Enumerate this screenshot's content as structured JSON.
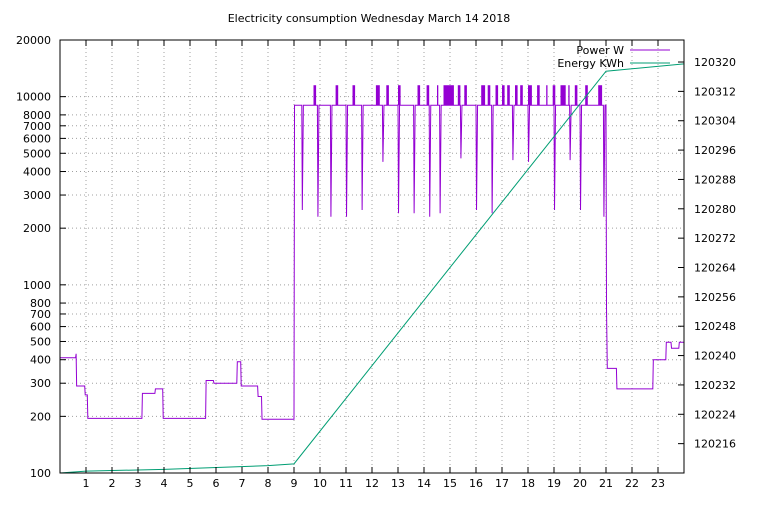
{
  "chart_data": {
    "type": "line",
    "title": "Electricity consumption Wednesday March 14 2018",
    "x": {
      "range": [
        0,
        24
      ],
      "ticks": [
        1,
        2,
        3,
        4,
        5,
        6,
        7,
        8,
        9,
        10,
        11,
        12,
        13,
        14,
        15,
        16,
        17,
        18,
        19,
        20,
        21,
        22,
        23
      ],
      "tick_labels": [
        "1",
        "2",
        "3",
        "4",
        "5",
        "6",
        "7",
        "8",
        "9",
        "10",
        "11",
        "12",
        "13",
        "14",
        "15",
        "16",
        "17",
        "18",
        "19",
        "20",
        "21",
        "22",
        "23"
      ]
    },
    "y_left": {
      "scale": "log",
      "range": [
        100,
        20000
      ],
      "ticks": [
        100,
        200,
        300,
        400,
        500,
        600,
        700,
        800,
        1000,
        2000,
        3000,
        4000,
        5000,
        6000,
        7000,
        8000,
        10000,
        20000
      ],
      "tick_labels": [
        "100",
        "200",
        "300",
        "400",
        "500",
        "600",
        "700",
        "800",
        "1000",
        "2000",
        "3000",
        "4000",
        "5000",
        "6000",
        "7000",
        "8000",
        "10000",
        "20000"
      ]
    },
    "y_right": {
      "scale": "linear",
      "range": [
        120208,
        120326
      ],
      "ticks": [
        120216,
        120224,
        120232,
        120240,
        120248,
        120256,
        120264,
        120272,
        120280,
        120288,
        120296,
        120304,
        120312,
        120320
      ],
      "tick_labels": [
        "120216",
        "120224",
        "120232",
        "120240",
        "120248",
        "120256",
        "120264",
        "120272",
        "120280",
        "120288",
        "120296",
        "120304",
        "120312",
        "120320"
      ]
    },
    "grid": true,
    "legend_position": "top-right",
    "series": [
      {
        "name": "Power W",
        "color": "#9400d3",
        "axis": "left",
        "points": [
          [
            0,
            410
          ],
          [
            0.6,
            410
          ],
          [
            0.62,
            430
          ],
          [
            0.64,
            290
          ],
          [
            0.95,
            290
          ],
          [
            0.97,
            260
          ],
          [
            1.05,
            260
          ],
          [
            1.07,
            195
          ],
          [
            3.15,
            195
          ],
          [
            3.17,
            265
          ],
          [
            3.65,
            265
          ],
          [
            3.67,
            280
          ],
          [
            3.95,
            280
          ],
          [
            3.97,
            195
          ],
          [
            5.6,
            195
          ],
          [
            5.62,
            310
          ],
          [
            5.9,
            310
          ],
          [
            5.92,
            300
          ],
          [
            6.8,
            300
          ],
          [
            6.82,
            390
          ],
          [
            6.95,
            390
          ],
          [
            6.97,
            290
          ],
          [
            7.6,
            290
          ],
          [
            7.62,
            255
          ],
          [
            7.75,
            255
          ],
          [
            7.77,
            193
          ],
          [
            9.0,
            193
          ],
          [
            9.02,
            9000
          ],
          [
            9.3,
            9000
          ],
          [
            9.32,
            2500
          ],
          [
            9.36,
            9000
          ],
          [
            9.9,
            9000
          ],
          [
            9.92,
            2300
          ],
          [
            9.96,
            9000
          ],
          [
            10.4,
            9000
          ],
          [
            10.42,
            2300
          ],
          [
            10.46,
            9000
          ],
          [
            11.0,
            9000
          ],
          [
            11.02,
            2300
          ],
          [
            11.06,
            9000
          ],
          [
            11.6,
            9000
          ],
          [
            11.62,
            2500
          ],
          [
            11.66,
            9000
          ],
          [
            12.4,
            9000
          ],
          [
            12.42,
            4500
          ],
          [
            12.46,
            9000
          ],
          [
            13.0,
            9000
          ],
          [
            13.02,
            2400
          ],
          [
            13.06,
            9000
          ],
          [
            13.6,
            9000
          ],
          [
            13.62,
            2400
          ],
          [
            13.66,
            9000
          ],
          [
            14.2,
            9000
          ],
          [
            14.22,
            2300
          ],
          [
            14.26,
            9000
          ],
          [
            14.6,
            9000
          ],
          [
            14.62,
            2400
          ],
          [
            14.66,
            9000
          ],
          [
            15.4,
            9000
          ],
          [
            15.42,
            4700
          ],
          [
            15.46,
            9000
          ],
          [
            16.0,
            9000
          ],
          [
            16.02,
            2500
          ],
          [
            16.06,
            9000
          ],
          [
            16.6,
            9000
          ],
          [
            16.62,
            2400
          ],
          [
            16.66,
            9000
          ],
          [
            17.4,
            9000
          ],
          [
            17.42,
            4600
          ],
          [
            17.46,
            9000
          ],
          [
            18.0,
            9000
          ],
          [
            18.02,
            4500
          ],
          [
            18.06,
            9000
          ],
          [
            19.0,
            9000
          ],
          [
            19.02,
            2500
          ],
          [
            19.06,
            9000
          ],
          [
            19.6,
            9000
          ],
          [
            19.62,
            4600
          ],
          [
            19.66,
            9000
          ],
          [
            20.0,
            9000
          ],
          [
            20.02,
            2500
          ],
          [
            20.06,
            9000
          ],
          [
            20.9,
            9000
          ],
          [
            20.92,
            2300
          ],
          [
            20.96,
            9000
          ],
          [
            21.0,
            9000
          ],
          [
            21.02,
            740
          ],
          [
            21.05,
            360
          ],
          [
            21.4,
            360
          ],
          [
            21.42,
            280
          ],
          [
            22.8,
            280
          ],
          [
            22.82,
            400
          ],
          [
            23.3,
            400
          ],
          [
            23.32,
            495
          ],
          [
            23.5,
            495
          ],
          [
            23.52,
            460
          ],
          [
            23.8,
            460
          ],
          [
            23.82,
            495
          ],
          [
            24,
            495
          ]
        ],
        "bursts": [
          [
            9.75,
            9.85
          ],
          [
            10.6,
            10.7
          ],
          [
            11.25,
            11.35
          ],
          [
            12.15,
            12.3
          ],
          [
            12.55,
            12.65
          ],
          [
            13.0,
            13.1
          ],
          [
            13.75,
            13.85
          ],
          [
            14.1,
            14.2
          ],
          [
            14.5,
            14.55
          ],
          [
            14.75,
            15.15
          ],
          [
            15.3,
            15.4
          ],
          [
            15.55,
            15.65
          ],
          [
            16.2,
            16.35
          ],
          [
            16.45,
            16.55
          ],
          [
            16.75,
            16.85
          ],
          [
            17.0,
            17.1
          ],
          [
            17.2,
            17.3
          ],
          [
            17.5,
            17.6
          ],
          [
            17.7,
            17.8
          ],
          [
            18.0,
            18.15
          ],
          [
            18.35,
            18.45
          ],
          [
            18.7,
            18.75
          ],
          [
            18.95,
            19.05
          ],
          [
            19.25,
            19.45
          ],
          [
            19.55,
            19.6
          ],
          [
            19.8,
            19.9
          ],
          [
            20.2,
            20.3
          ],
          [
            20.7,
            20.85
          ]
        ],
        "burst_value": 11500
      },
      {
        "name": "Energy KWh",
        "color": "#009e73",
        "axis": "right",
        "points": [
          [
            0,
            120208.0
          ],
          [
            1,
            120208.5
          ],
          [
            4,
            120209.0
          ],
          [
            8,
            120210.0
          ],
          [
            9,
            120210.5
          ],
          [
            21,
            120317.5
          ],
          [
            24,
            120319.5
          ]
        ]
      }
    ],
    "legend": [
      {
        "label": "Power W",
        "color": "#9400d3"
      },
      {
        "label": "Energy KWh",
        "color": "#009e73"
      }
    ]
  }
}
